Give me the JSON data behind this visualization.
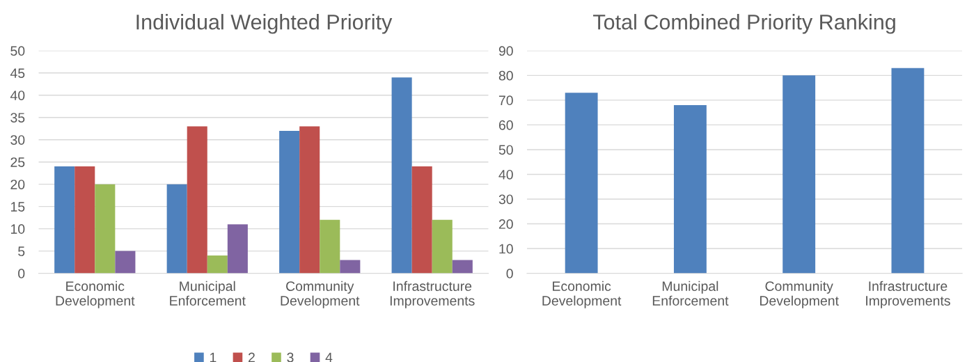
{
  "chart_data": [
    {
      "type": "bar",
      "title": "Individual Weighted Priority",
      "categories": [
        "Economic\nDevelopment",
        "Municipal\nEnforcement",
        "Community\nDevelopment",
        "Infrastructure\nImprovements"
      ],
      "series": [
        {
          "name": "1",
          "color": "#4f81bd",
          "values": [
            24,
            20,
            32,
            44
          ]
        },
        {
          "name": "2",
          "color": "#c0504d",
          "values": [
            24,
            33,
            33,
            24
          ]
        },
        {
          "name": "3",
          "color": "#9bbb59",
          "values": [
            20,
            4,
            12,
            12
          ]
        },
        {
          "name": "4",
          "color": "#8064a2",
          "values": [
            5,
            11,
            3,
            3
          ]
        }
      ],
      "ylim": [
        0,
        50
      ],
      "yticks": [
        0,
        5,
        10,
        15,
        20,
        25,
        30,
        35,
        40,
        45,
        50
      ],
      "grid": "y",
      "legend": "bottom"
    },
    {
      "type": "bar",
      "title": "Total Combined Priority Ranking",
      "categories": [
        "Economic\nDevelopment",
        "Municipal\nEnforcement",
        "Community\nDevelopment",
        "Infrastructure\nImprovements"
      ],
      "series": [
        {
          "color": "#4f81bd",
          "values": [
            73,
            68,
            80,
            83
          ]
        }
      ],
      "ylim": [
        0,
        90
      ],
      "yticks": [
        0,
        10,
        20,
        30,
        40,
        50,
        60,
        70,
        80,
        90
      ],
      "grid": "y",
      "legend": false
    }
  ]
}
